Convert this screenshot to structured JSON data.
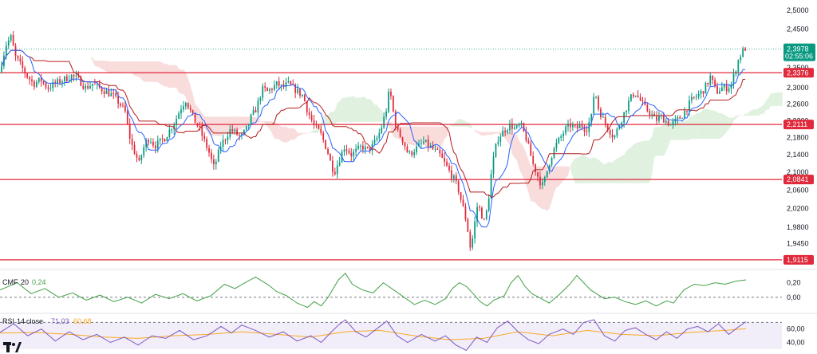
{
  "chart_data": {
    "type": "candlestick",
    "price_axis": {
      "ticks": [
        "2,5000",
        "2,4500",
        "2,3500",
        "2,3000",
        "2,2600",
        "2,2200",
        "2,1800",
        "2,1400",
        "2,1000",
        "2,0600",
        "2,0200",
        "1,9800",
        "1,9450"
      ],
      "range": [
        1.895,
        2.515
      ],
      "scale": "log"
    },
    "current_price": {
      "label": "2,3978",
      "countdown": "02:55:06",
      "value": 2.3978,
      "color": "#089981"
    },
    "levels": [
      {
        "label": "2,3376",
        "value": 2.3376
      },
      {
        "label": "2,2111",
        "value": 2.2111
      },
      {
        "label": "2,0841",
        "value": 2.0841
      },
      {
        "label": "1,9115",
        "value": 1.9115
      }
    ],
    "level_color": "#e0293a",
    "up_color": "#089981",
    "down_color": "#e0293a",
    "tenkan_color": "#2962ff",
    "kijun_color": "#b71c1c",
    "cloud_bull_color": "#a5d6a7",
    "cloud_bear_color": "#ef9a9a",
    "close_path": [
      [
        0,
        2.34
      ],
      [
        4,
        2.41
      ],
      [
        7,
        2.43
      ],
      [
        9,
        2.38
      ],
      [
        12,
        2.36
      ],
      [
        16,
        2.33
      ],
      [
        20,
        2.31
      ],
      [
        24,
        2.32
      ],
      [
        28,
        2.3
      ],
      [
        32,
        2.31
      ],
      [
        37,
        2.32
      ],
      [
        42,
        2.33
      ],
      [
        46,
        2.32
      ],
      [
        50,
        2.3
      ],
      [
        54,
        2.31
      ],
      [
        58,
        2.3
      ],
      [
        62,
        2.29
      ],
      [
        66,
        2.28
      ],
      [
        70,
        2.26
      ],
      [
        73,
        2.24
      ],
      [
        75,
        2.19
      ],
      [
        77,
        2.16
      ],
      [
        79,
        2.14
      ],
      [
        81,
        2.12
      ],
      [
        83,
        2.15
      ],
      [
        85,
        2.17
      ],
      [
        87,
        2.18
      ],
      [
        90,
        2.16
      ],
      [
        93,
        2.17
      ],
      [
        96,
        2.18
      ],
      [
        99,
        2.2
      ],
      [
        102,
        2.22
      ],
      [
        105,
        2.25
      ],
      [
        108,
        2.27
      ],
      [
        111,
        2.24
      ],
      [
        113,
        2.22
      ],
      [
        116,
        2.2
      ],
      [
        119,
        2.17
      ],
      [
        122,
        2.14
      ],
      [
        124,
        2.11
      ],
      [
        126,
        2.13
      ],
      [
        128,
        2.16
      ],
      [
        131,
        2.18
      ],
      [
        134,
        2.2
      ],
      [
        137,
        2.19
      ],
      [
        140,
        2.18
      ],
      [
        143,
        2.2
      ],
      [
        146,
        2.23
      ],
      [
        149,
        2.25
      ],
      [
        151,
        2.28
      ],
      [
        153,
        2.3
      ],
      [
        155,
        2.29
      ],
      [
        158,
        2.3
      ],
      [
        161,
        2.31
      ],
      [
        164,
        2.3
      ],
      [
        167,
        2.31
      ],
      [
        170,
        2.3
      ],
      [
        173,
        2.29
      ],
      [
        176,
        2.28
      ],
      [
        178,
        2.25
      ],
      [
        180,
        2.23
      ],
      [
        182,
        2.21
      ],
      [
        184,
        2.2
      ],
      [
        186,
        2.19
      ],
      [
        188,
        2.17
      ],
      [
        190,
        2.15
      ],
      [
        192,
        2.12
      ],
      [
        194,
        2.1
      ],
      [
        196,
        2.12
      ],
      [
        198,
        2.14
      ],
      [
        200,
        2.16
      ],
      [
        202,
        2.15
      ],
      [
        204,
        2.14
      ],
      [
        207,
        2.15
      ],
      [
        210,
        2.16
      ],
      [
        213,
        2.15
      ],
      [
        216,
        2.16
      ],
      [
        219,
        2.18
      ],
      [
        221,
        2.2
      ],
      [
        223,
        2.23
      ],
      [
        225,
        2.26
      ],
      [
        226,
        2.31
      ],
      [
        227,
        2.27
      ],
      [
        229,
        2.22
      ],
      [
        231,
        2.19
      ],
      [
        233,
        2.18
      ],
      [
        235,
        2.16
      ],
      [
        237,
        2.14
      ],
      [
        240,
        2.15
      ],
      [
        243,
        2.16
      ],
      [
        246,
        2.17
      ],
      [
        249,
        2.16
      ],
      [
        252,
        2.15
      ],
      [
        255,
        2.14
      ],
      [
        258,
        2.12
      ],
      [
        261,
        2.1
      ],
      [
        264,
        2.08
      ],
      [
        266,
        2.06
      ],
      [
        268,
        2.03
      ],
      [
        270,
        2.0
      ],
      [
        272,
        1.96
      ],
      [
        273,
        1.93
      ],
      [
        275,
        1.98
      ],
      [
        277,
        2.03
      ],
      [
        279,
        2.01
      ],
      [
        281,
        1.99
      ],
      [
        283,
        2.03
      ],
      [
        285,
        2.1
      ],
      [
        287,
        2.15
      ],
      [
        289,
        2.18
      ],
      [
        291,
        2.19
      ],
      [
        293,
        2.2
      ],
      [
        296,
        2.21
      ],
      [
        299,
        2.2
      ],
      [
        302,
        2.21
      ],
      [
        305,
        2.18
      ],
      [
        307,
        2.15
      ],
      [
        309,
        2.12
      ],
      [
        311,
        2.1
      ],
      [
        313,
        2.08
      ],
      [
        315,
        2.07
      ],
      [
        317,
        2.1
      ],
      [
        319,
        2.13
      ],
      [
        322,
        2.16
      ],
      [
        325,
        2.18
      ],
      [
        328,
        2.2
      ],
      [
        331,
        2.21
      ],
      [
        334,
        2.2
      ],
      [
        337,
        2.21
      ],
      [
        340,
        2.2
      ],
      [
        343,
        2.23
      ],
      [
        345,
        2.31
      ],
      [
        346,
        2.26
      ],
      [
        348,
        2.24
      ],
      [
        350,
        2.22
      ],
      [
        353,
        2.2
      ],
      [
        356,
        2.18
      ],
      [
        359,
        2.21
      ],
      [
        362,
        2.24
      ],
      [
        365,
        2.27
      ],
      [
        368,
        2.29
      ],
      [
        371,
        2.27
      ],
      [
        374,
        2.25
      ],
      [
        377,
        2.24
      ],
      [
        380,
        2.22
      ],
      [
        383,
        2.23
      ],
      [
        386,
        2.22
      ],
      [
        389,
        2.21
      ],
      [
        392,
        2.22
      ],
      [
        395,
        2.23
      ],
      [
        398,
        2.25
      ],
      [
        401,
        2.27
      ],
      [
        404,
        2.28
      ],
      [
        407,
        2.29
      ],
      [
        410,
        2.31
      ],
      [
        412,
        2.33
      ],
      [
        414,
        2.3
      ],
      [
        416,
        2.29
      ],
      [
        418,
        2.3
      ],
      [
        420,
        2.3
      ],
      [
        422,
        2.3
      ],
      [
        424,
        2.31
      ],
      [
        426,
        2.34
      ],
      [
        428,
        2.37
      ],
      [
        430,
        2.39
      ],
      [
        432,
        2.4
      ]
    ],
    "candles": {
      "count": 320,
      "x_start": 0,
      "x_end": 432,
      "bull_range": [
        305,
        320
      ]
    },
    "cmf": {
      "name": "CMF",
      "length": "20",
      "value_label": "0,24",
      "ticks": [
        "0,20",
        "0,00"
      ],
      "range": [
        -0.2,
        0.35
      ],
      "color": "#43a047",
      "zero_line": 0,
      "path": [
        [
          0,
          0.1
        ],
        [
          10,
          0.2
        ],
        [
          18,
          0.05
        ],
        [
          26,
          0.12
        ],
        [
          34,
          0.0
        ],
        [
          42,
          0.06
        ],
        [
          50,
          -0.04
        ],
        [
          58,
          0.03
        ],
        [
          66,
          -0.06
        ],
        [
          74,
          0.0
        ],
        [
          82,
          -0.08
        ],
        [
          90,
          0.04
        ],
        [
          98,
          -0.02
        ],
        [
          106,
          0.05
        ],
        [
          114,
          -0.05
        ],
        [
          122,
          0.02
        ],
        [
          130,
          0.18
        ],
        [
          136,
          0.12
        ],
        [
          142,
          0.2
        ],
        [
          148,
          0.28
        ],
        [
          152,
          0.22
        ],
        [
          156,
          0.16
        ],
        [
          160,
          0.08
        ],
        [
          166,
          0.02
        ],
        [
          172,
          -0.08
        ],
        [
          178,
          -0.14
        ],
        [
          182,
          -0.06
        ],
        [
          186,
          -0.12
        ],
        [
          190,
          0.0
        ],
        [
          196,
          0.24
        ],
        [
          200,
          0.33
        ],
        [
          204,
          0.18
        ],
        [
          210,
          0.1
        ],
        [
          216,
          0.06
        ],
        [
          222,
          0.2
        ],
        [
          228,
          0.1
        ],
        [
          234,
          0.0
        ],
        [
          240,
          -0.1
        ],
        [
          246,
          -0.04
        ],
        [
          252,
          -0.1
        ],
        [
          258,
          -0.02
        ],
        [
          262,
          0.12
        ],
        [
          266,
          0.2
        ],
        [
          270,
          0.15
        ],
        [
          274,
          0.05
        ],
        [
          278,
          -0.06
        ],
        [
          282,
          -0.12
        ],
        [
          286,
          -0.04
        ],
        [
          292,
          0.02
        ],
        [
          296,
          0.2
        ],
        [
          300,
          0.3
        ],
        [
          304,
          0.15
        ],
        [
          308,
          0.05
        ],
        [
          312,
          0.0
        ],
        [
          318,
          -0.08
        ],
        [
          324,
          0.04
        ],
        [
          330,
          0.18
        ],
        [
          334,
          0.3
        ],
        [
          338,
          0.2
        ],
        [
          342,
          0.1
        ],
        [
          346,
          0.04
        ],
        [
          350,
          -0.02
        ],
        [
          356,
          0.0
        ],
        [
          362,
          -0.06
        ],
        [
          368,
          -0.1
        ],
        [
          374,
          -0.05
        ],
        [
          380,
          -0.12
        ],
        [
          386,
          -0.05
        ],
        [
          390,
          -0.08
        ],
        [
          396,
          0.1
        ],
        [
          402,
          0.18
        ],
        [
          408,
          0.16
        ],
        [
          414,
          0.2
        ],
        [
          420,
          0.18
        ],
        [
          426,
          0.22
        ],
        [
          432,
          0.24
        ]
      ]
    },
    "rsi": {
      "name": "RSI",
      "length": "14",
      "source": "close",
      "value_label": "71,03",
      "ma_label": "60,68",
      "ticks": [
        "60,00",
        "40,00"
      ],
      "range": [
        25,
        80
      ],
      "color": "#7e57c2",
      "ma_color": "#f9a825",
      "band": [
        30,
        70
      ],
      "path": [
        [
          0,
          55
        ],
        [
          8,
          68
        ],
        [
          16,
          50
        ],
        [
          24,
          60
        ],
        [
          32,
          42
        ],
        [
          40,
          56
        ],
        [
          48,
          44
        ],
        [
          56,
          52
        ],
        [
          64,
          40
        ],
        [
          72,
          48
        ],
        [
          80,
          36
        ],
        [
          88,
          50
        ],
        [
          96,
          46
        ],
        [
          104,
          58
        ],
        [
          112,
          44
        ],
        [
          120,
          50
        ],
        [
          128,
          64
        ],
        [
          134,
          54
        ],
        [
          140,
          66
        ],
        [
          148,
          58
        ],
        [
          156,
          48
        ],
        [
          164,
          56
        ],
        [
          172,
          42
        ],
        [
          180,
          50
        ],
        [
          186,
          40
        ],
        [
          192,
          56
        ],
        [
          196,
          66
        ],
        [
          200,
          74
        ],
        [
          206,
          56
        ],
        [
          212,
          48
        ],
        [
          218,
          60
        ],
        [
          224,
          72
        ],
        [
          230,
          50
        ],
        [
          236,
          40
        ],
        [
          244,
          52
        ],
        [
          252,
          42
        ],
        [
          258,
          50
        ],
        [
          264,
          36
        ],
        [
          270,
          28
        ],
        [
          276,
          48
        ],
        [
          282,
          40
        ],
        [
          288,
          62
        ],
        [
          294,
          72
        ],
        [
          300,
          56
        ],
        [
          306,
          44
        ],
        [
          312,
          38
        ],
        [
          318,
          52
        ],
        [
          326,
          60
        ],
        [
          332,
          52
        ],
        [
          338,
          70
        ],
        [
          344,
          74
        ],
        [
          350,
          50
        ],
        [
          356,
          42
        ],
        [
          362,
          58
        ],
        [
          368,
          62
        ],
        [
          374,
          52
        ],
        [
          380,
          44
        ],
        [
          386,
          56
        ],
        [
          392,
          46
        ],
        [
          398,
          60
        ],
        [
          404,
          64
        ],
        [
          410,
          56
        ],
        [
          416,
          68
        ],
        [
          422,
          52
        ],
        [
          428,
          64
        ],
        [
          432,
          71
        ]
      ],
      "ma_path": [
        [
          0,
          54
        ],
        [
          20,
          55
        ],
        [
          40,
          52
        ],
        [
          60,
          48
        ],
        [
          80,
          46
        ],
        [
          100,
          50
        ],
        [
          120,
          52
        ],
        [
          140,
          56
        ],
        [
          160,
          52
        ],
        [
          180,
          48
        ],
        [
          200,
          56
        ],
        [
          220,
          58
        ],
        [
          240,
          50
        ],
        [
          260,
          44
        ],
        [
          280,
          46
        ],
        [
          300,
          56
        ],
        [
          320,
          50
        ],
        [
          340,
          58
        ],
        [
          360,
          52
        ],
        [
          380,
          50
        ],
        [
          400,
          55
        ],
        [
          420,
          58
        ],
        [
          432,
          60.68
        ]
      ]
    }
  }
}
